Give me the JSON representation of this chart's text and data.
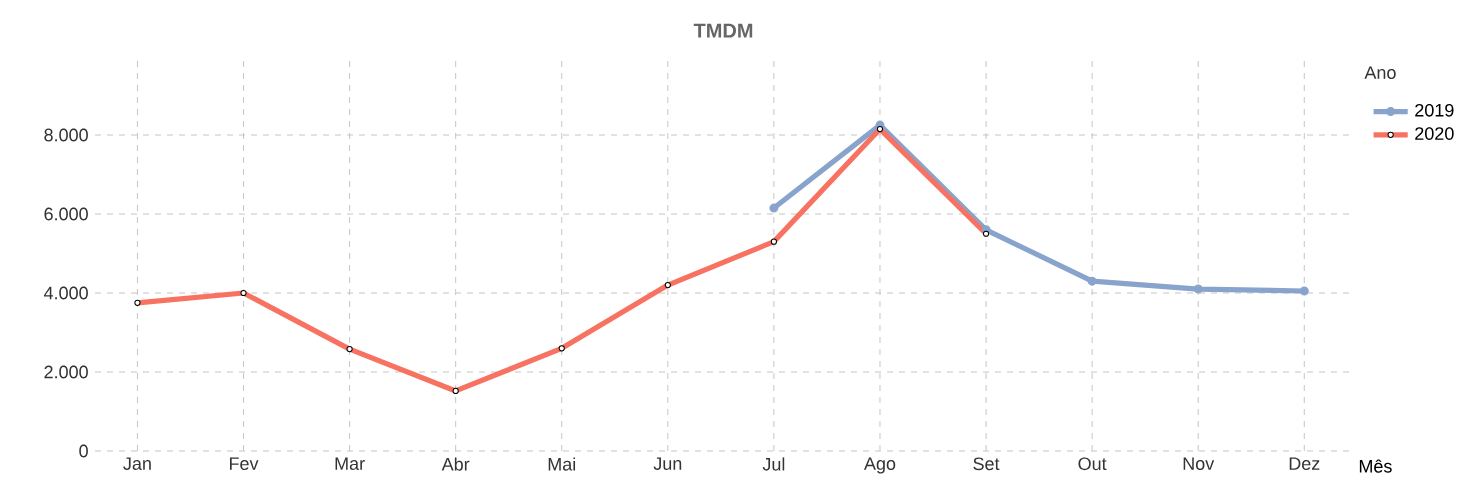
{
  "chart_data": {
    "type": "line",
    "title": "TMDM",
    "xlabel": "Mês",
    "legend_title": "Ano",
    "categories": [
      "Jan",
      "Fev",
      "Mar",
      "Abr",
      "Mai",
      "Jun",
      "Jul",
      "Ago",
      "Set",
      "Out",
      "Nov",
      "Dez"
    ],
    "series": [
      {
        "name": "2019",
        "color": "#88a4cc",
        "values": [
          null,
          null,
          null,
          null,
          null,
          null,
          6150,
          8250,
          5600,
          4300,
          4100,
          4050
        ]
      },
      {
        "name": "2020",
        "color": "#f87262",
        "values": [
          3750,
          4000,
          2580,
          1520,
          2600,
          4200,
          5300,
          8150,
          5500,
          null,
          null,
          null
        ]
      }
    ],
    "ylim": [
      0,
      10000
    ],
    "yticks": [
      {
        "value": 0,
        "label": "0"
      },
      {
        "value": 2000,
        "label": "2.000"
      },
      {
        "value": 4000,
        "label": "4.000"
      },
      {
        "value": 6000,
        "label": "6.000"
      },
      {
        "value": 8000,
        "label": "8.000"
      }
    ],
    "grid": true,
    "legend": "top right",
    "marker": "circle",
    "line_style": "solid"
  }
}
